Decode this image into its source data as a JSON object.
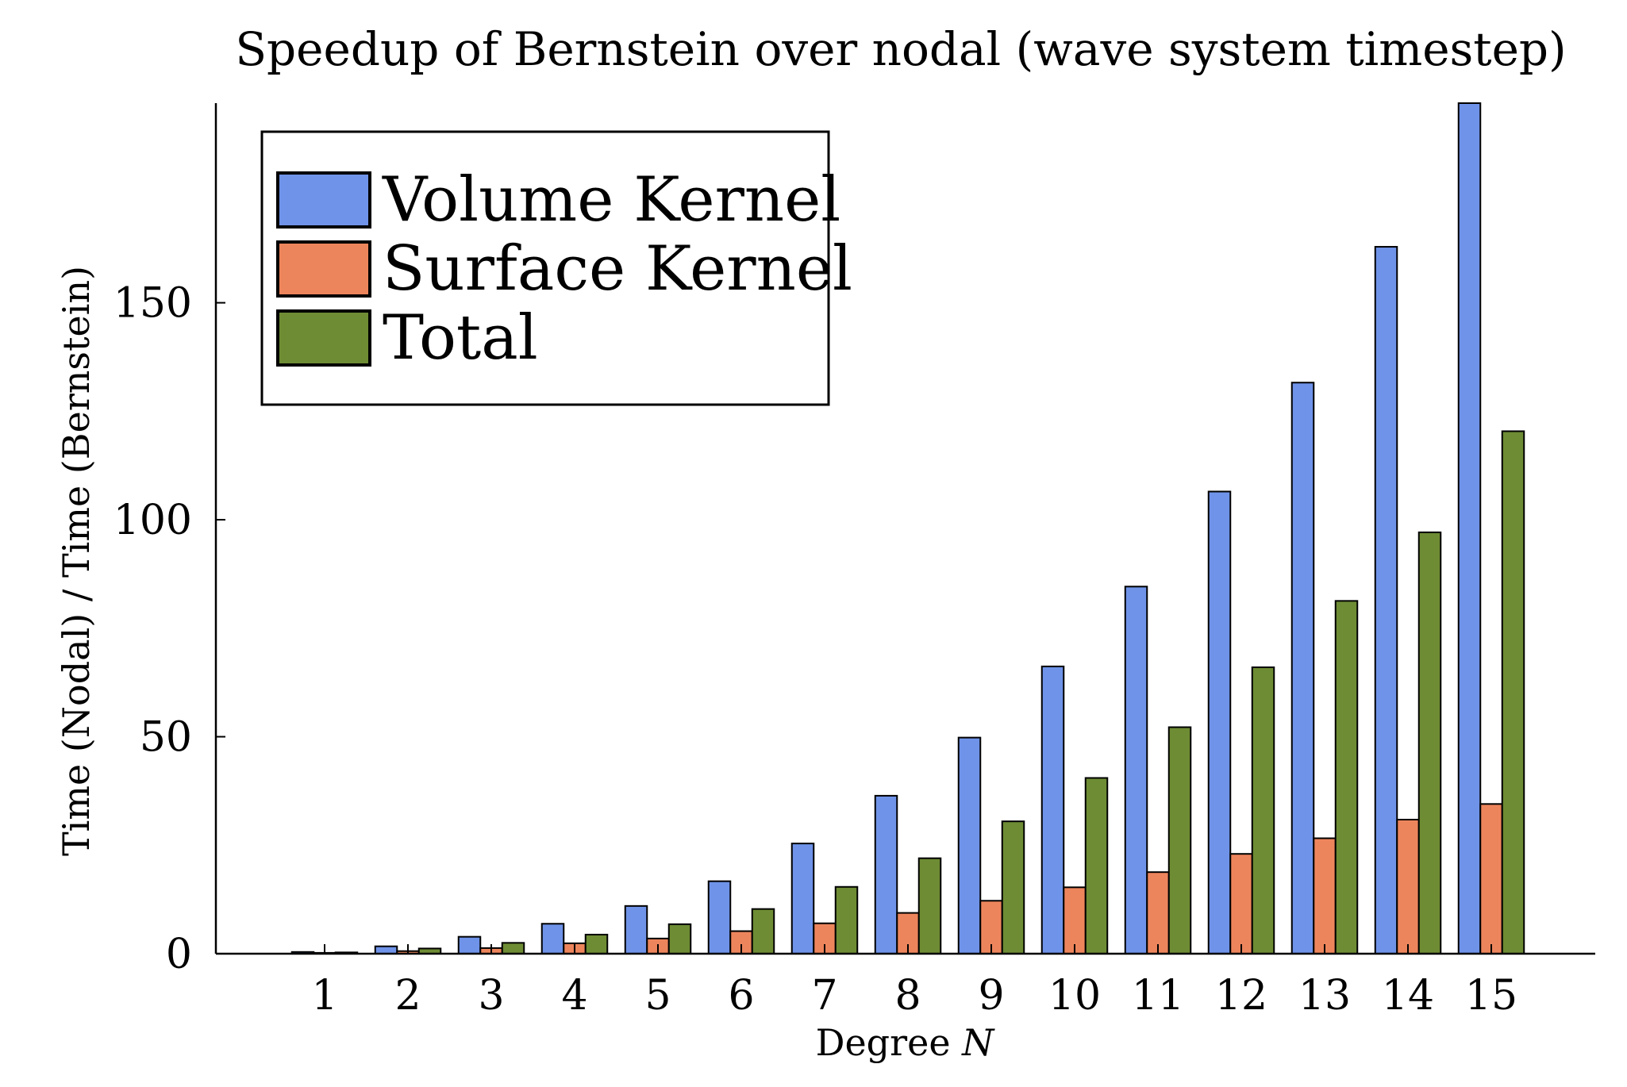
{
  "chart_data": {
    "type": "bar",
    "title": "Speedup of Bernstein over nodal (wave system timestep)",
    "xlabel": "Degree",
    "xlabel_var": "N",
    "ylabel": "Time (Nodal) / Time (Bernstein)",
    "categories": [
      "1",
      "2",
      "3",
      "4",
      "5",
      "6",
      "7",
      "8",
      "9",
      "10",
      "11",
      "12",
      "13",
      "14",
      "15"
    ],
    "yticks": [
      "0",
      "50",
      "100",
      "150"
    ],
    "ylim": [
      0,
      196
    ],
    "grid": false,
    "legend_position": "top-left",
    "series": [
      {
        "name": "Volume Kernel",
        "color": "#6f93e8",
        "values": [
          0.4,
          1.7,
          3.9,
          6.9,
          11.0,
          16.7,
          25.4,
          36.4,
          49.8,
          66.2,
          84.6,
          106.5,
          131.6,
          162.9,
          196.0
        ]
      },
      {
        "name": "Surface Kernel",
        "color": "#ed855c",
        "values": [
          0.2,
          0.6,
          1.3,
          2.4,
          3.5,
          5.2,
          7.0,
          9.4,
          12.2,
          15.3,
          18.8,
          23.0,
          26.6,
          30.9,
          34.5
        ]
      },
      {
        "name": "Total",
        "color": "#6e8c34",
        "values": [
          0.3,
          1.2,
          2.5,
          4.4,
          6.8,
          10.3,
          15.4,
          22.0,
          30.5,
          40.5,
          52.2,
          66.0,
          81.3,
          97.1,
          120.4
        ]
      }
    ]
  }
}
